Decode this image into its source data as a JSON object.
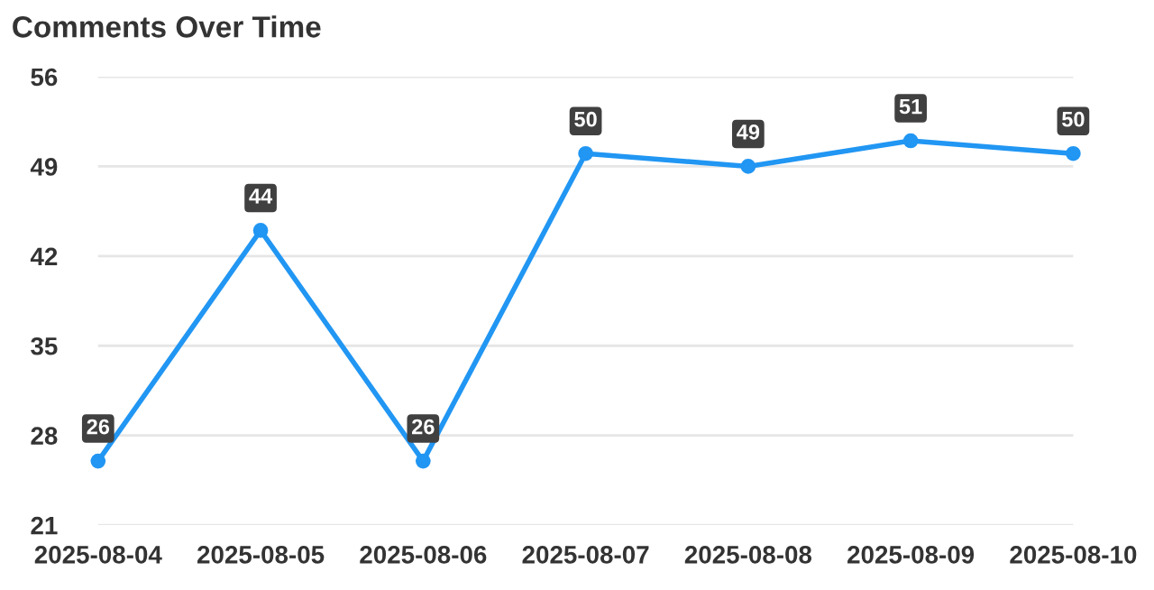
{
  "chart_data": {
    "type": "line",
    "title": "Comments Over Time",
    "categories": [
      "2025-08-04",
      "2025-08-05",
      "2025-08-06",
      "2025-08-07",
      "2025-08-08",
      "2025-08-09",
      "2025-08-10"
    ],
    "series": [
      {
        "color": "#2196f3",
        "values": [
          26,
          44,
          26,
          50,
          49,
          51,
          50
        ]
      }
    ],
    "ylim": [
      21,
      56
    ],
    "yticks": [
      21,
      28,
      35,
      42,
      49,
      56
    ],
    "grid": "y",
    "marker": "circle",
    "line_style": "solid",
    "data_labels": true,
    "legend": false
  }
}
